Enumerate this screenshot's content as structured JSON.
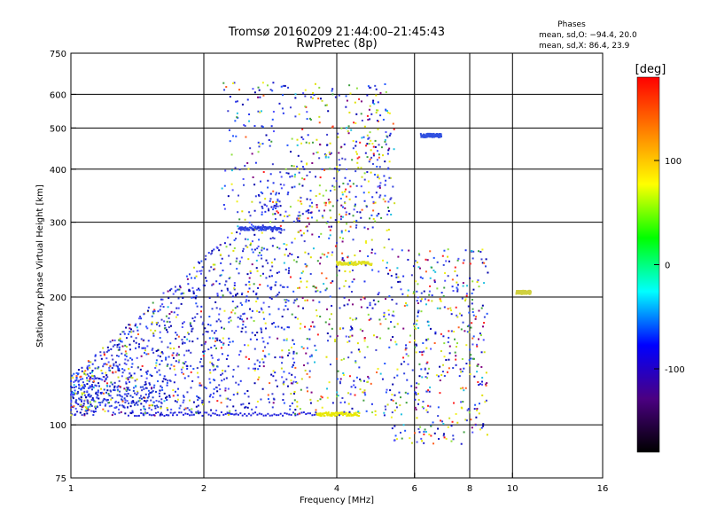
{
  "chart_data": {
    "type": "scatter",
    "title": "Tromsø 20160209 21:44:00–21:45:43",
    "subtitle": "RwPretec (8p)",
    "xlabel": "Frequency [MHz]",
    "ylabel": "Stationary phase Virtual Height [km]",
    "x_scale": "log",
    "y_scale": "log",
    "xlim": [
      1,
      16
    ],
    "ylim": [
      75,
      750
    ],
    "x_ticks": [
      1,
      2,
      4,
      6,
      8,
      10,
      16
    ],
    "y_ticks": [
      75,
      100,
      200,
      300,
      400,
      500,
      600,
      750
    ],
    "x_gridlines": [
      2,
      4,
      6,
      8,
      10
    ],
    "y_gridlines": [
      100,
      200,
      300,
      400,
      500,
      600
    ],
    "grid": true,
    "phase_box": {
      "title": "Phases",
      "line_o": "mean, sd,O: −94.4, 20.0",
      "line_x": "mean, sd,X:  86.4, 23.9"
    },
    "colorbar": {
      "label": "[deg]",
      "range": [
        -180,
        180
      ],
      "ticks": [
        100,
        0,
        -100
      ],
      "colors": [
        "#000000",
        "#4b0082",
        "#0000ff",
        "#00ffff",
        "#00ff00",
        "#ffff00",
        "#ff8000",
        "#ff0000"
      ]
    },
    "echo_traces": [
      {
        "f_range": [
          1.35,
          3.6
        ],
        "height": 106,
        "color": "#2222dd",
        "desc": "low trace"
      },
      {
        "f_range": [
          3.6,
          4.5
        ],
        "height": 106,
        "color": "#e8e800"
      },
      {
        "f_range": [
          1.0,
          1.6
        ],
        "height_range": [
          110,
          125
        ],
        "color": "#1c3cd0"
      },
      {
        "f_range": [
          2.4,
          3.0
        ],
        "height": 290,
        "color": "#2a40e0"
      },
      {
        "f_range": [
          4.0,
          4.8
        ],
        "height": 240,
        "color": "#e0e020"
      },
      {
        "f_range": [
          6.2,
          6.9
        ],
        "height": 480,
        "color": "#3050e0"
      },
      {
        "f_range": [
          10.2,
          11.0
        ],
        "height": 205,
        "color": "#d0d040"
      }
    ]
  }
}
